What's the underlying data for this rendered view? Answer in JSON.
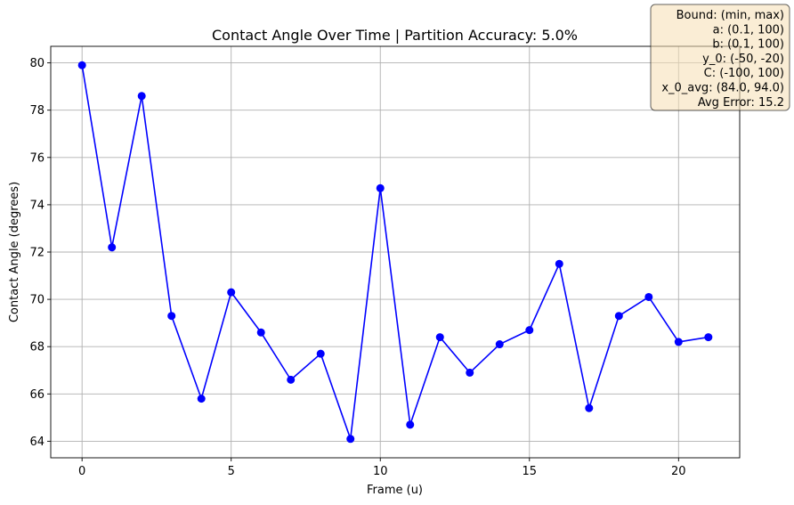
{
  "chart_data": {
    "type": "line",
    "title": "Contact Angle Over Time | Partition Accuracy: 5.0%",
    "xlabel": "Frame (u)",
    "ylabel": "Contact Angle (degrees)",
    "xlim": [
      -1.05,
      22.05
    ],
    "ylim": [
      63.3,
      80.7
    ],
    "xticks": [
      0,
      5,
      10,
      15,
      20
    ],
    "yticks": [
      64,
      66,
      68,
      70,
      72,
      74,
      76,
      78,
      80
    ],
    "grid": true,
    "line_color": "#0000ff",
    "series": [
      {
        "x": [
          0,
          1,
          2,
          3,
          4,
          5,
          6,
          7,
          8,
          9,
          10,
          11,
          12,
          13,
          14,
          15,
          16,
          17,
          18,
          19,
          20,
          21
        ],
        "values": [
          79.9,
          72.2,
          78.6,
          69.3,
          65.8,
          70.3,
          68.6,
          66.6,
          67.7,
          64.1,
          74.7,
          64.7,
          68.4,
          66.9,
          68.1,
          68.7,
          71.5,
          65.4,
          69.3,
          70.1,
          68.2,
          68.4
        ]
      }
    ],
    "annotation": {
      "lines": [
        "Bound: (min, max)",
        "a: (0.1, 100)",
        "b: (0.1, 100)",
        "y_0: (-50, -20)",
        "C: (-100, 100)",
        "x_0_avg: (84.0, 94.0)",
        "Avg Error: 15.2"
      ],
      "box_color": "#f5deb3",
      "position": "top-right"
    }
  }
}
